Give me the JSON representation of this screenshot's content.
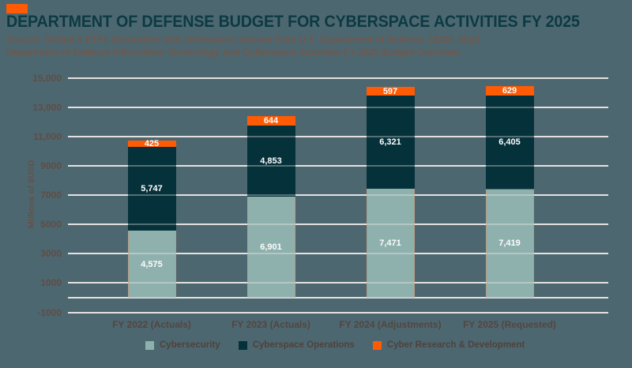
{
  "header": {
    "title": "DEPARTMENT OF DEFENSE BUDGET FOR CYBERSPACE ACTIVITIES FY 2025",
    "source_line1": "Source: Global X ETFs illustration with information derived from U.S. Department of Defense. (2024, May).",
    "source_line2": "Department of Defense Information Technology and Cyberspace Activities FY 2025 Budget Overview.",
    "brand_color": "#ff5a04"
  },
  "colors": {
    "background": "#4d6770",
    "title_text": "#0c3a43",
    "source_text": "#6f584d",
    "axis_text": "#544540",
    "gridline": "#d8d8db",
    "bar_label_text": "#fdfdfd"
  },
  "chart_data": {
    "type": "bar",
    "stacked": true,
    "title": "DEPARTMENT OF DEFENSE BUDGET FOR CYBERSPACE ACTIVITIES FY 2025",
    "xlabel": "",
    "ylabel": "Millions of $USD",
    "ylim": [
      -1000,
      15000
    ],
    "grid": true,
    "legend_position": "bottom",
    "categories": [
      "FY 2022 (Actuals)",
      "FY 2023 (Actuals)",
      "FY 2024 (Adjustments)",
      "FY 2025 (Requested)"
    ],
    "series": [
      {
        "name": "Cybersecurity",
        "color": "#8fb1ae",
        "values": [
          4575,
          6901,
          7471,
          7419
        ],
        "labels": [
          "4,575",
          "6,901",
          "7,471",
          "7,419"
        ]
      },
      {
        "name": "Cyberspace Operations",
        "color": "#05313b",
        "values": [
          5747,
          4853,
          6321,
          6405
        ],
        "labels": [
          "5,747",
          "4,853",
          "6,321",
          "6,405"
        ]
      },
      {
        "name": "Cyber Research & Development",
        "color": "#ff5a04",
        "values": [
          425,
          644,
          597,
          629
        ],
        "labels": [
          "425",
          "644",
          "597",
          "629"
        ]
      }
    ],
    "y_ticks": [
      {
        "value": 15000,
        "label": "15,000"
      },
      {
        "value": 13000,
        "label": "13,000"
      },
      {
        "value": 11000,
        "label": "11,000"
      },
      {
        "value": 9000,
        "label": "9000"
      },
      {
        "value": 7000,
        "label": "7000"
      },
      {
        "value": 5000,
        "label": "5000"
      },
      {
        "value": 3000,
        "label": "3000"
      },
      {
        "value": 1000,
        "label": "1000"
      },
      {
        "value": 0,
        "label": ""
      },
      {
        "value": -1000,
        "label": "-1000"
      }
    ]
  }
}
